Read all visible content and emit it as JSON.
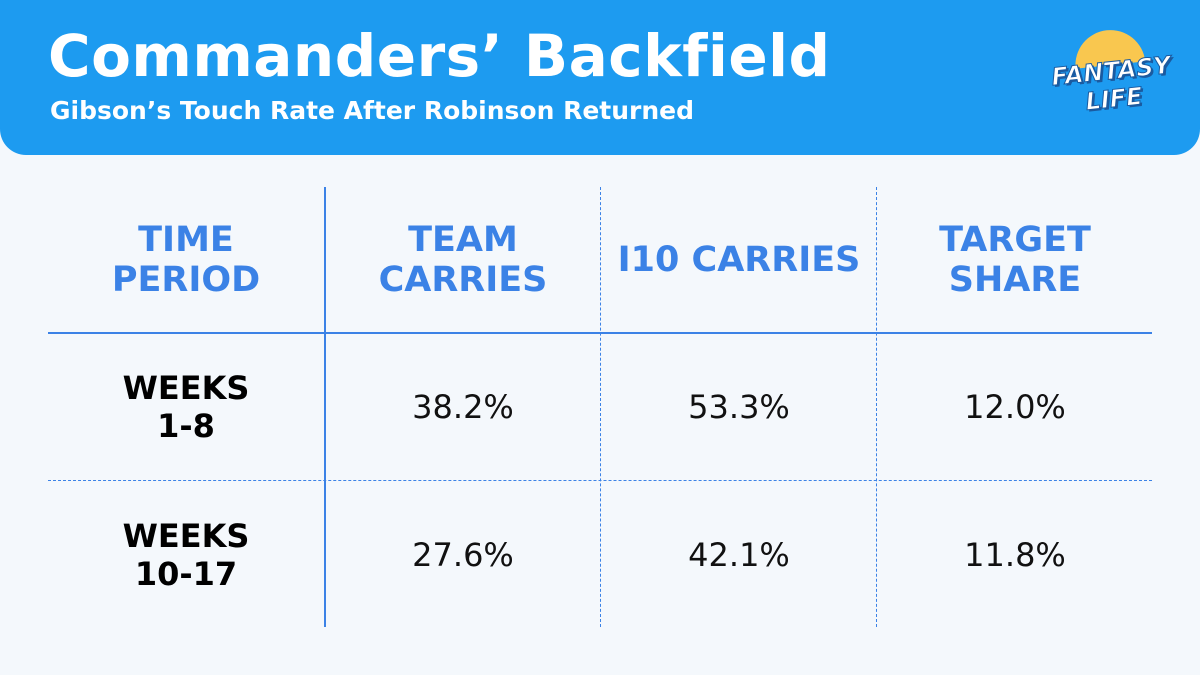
{
  "header": {
    "title": "Commanders’ Backfield",
    "subtitle": "Gibson’s Touch Rate After Robinson Returned"
  },
  "logo": {
    "line1": "FANTASY",
    "line2": "LIFE"
  },
  "table": {
    "columns": [
      "TIME PERIOD",
      "TEAM CARRIES",
      "I10 CARRIES",
      "TARGET SHARE"
    ],
    "rows": [
      [
        "WEEKS 1-8",
        "38.2%",
        "53.3%",
        "12.0%"
      ],
      [
        "WEEKS 10-17",
        "27.6%",
        "42.1%",
        "11.8%"
      ]
    ]
  }
}
